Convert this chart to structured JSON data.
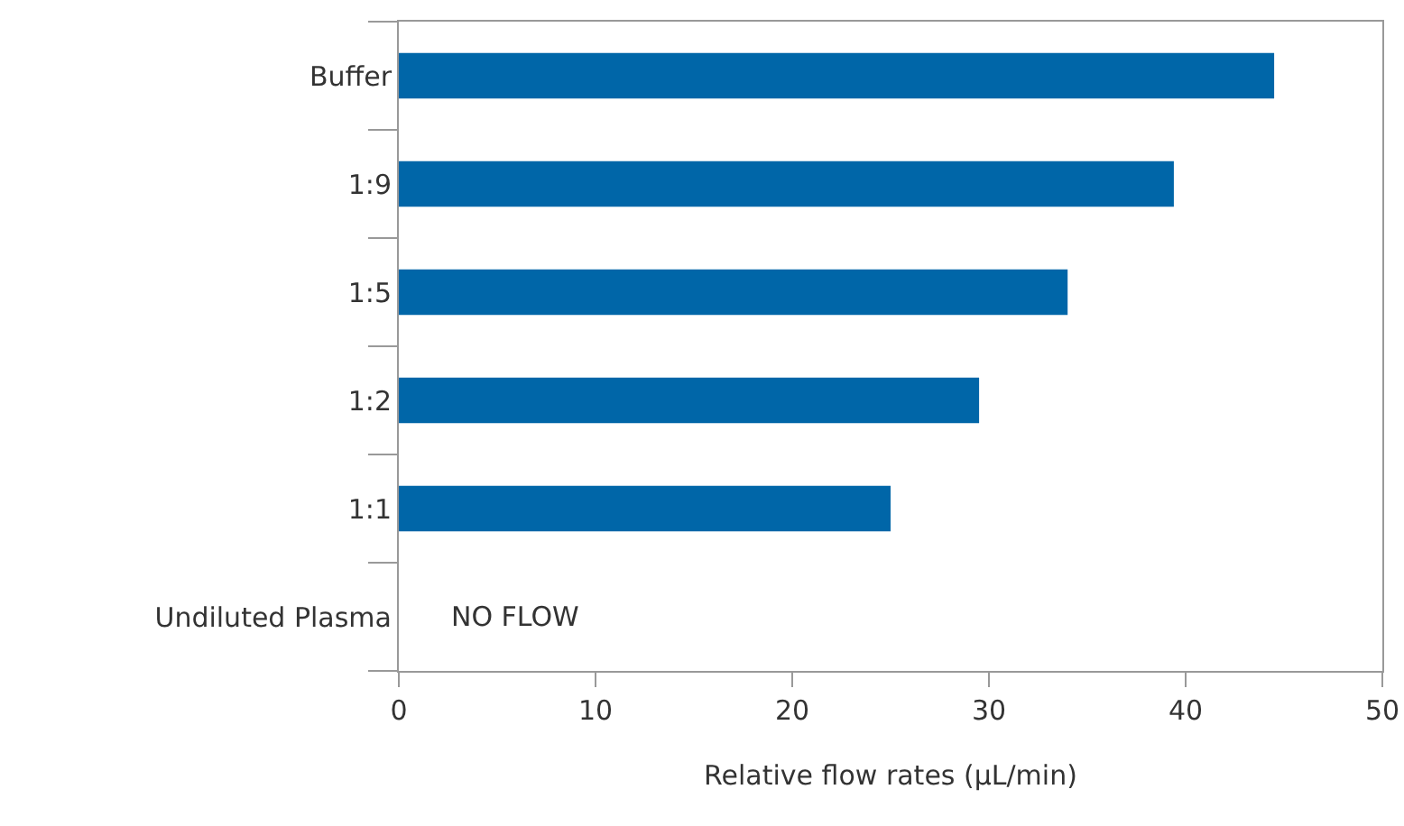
{
  "chart_data": {
    "type": "bar",
    "orientation": "horizontal",
    "categories": [
      "Buffer",
      "1:9",
      "1:5",
      "1:2",
      "1:1",
      "Undiluted Plasma"
    ],
    "values": [
      44.5,
      39.4,
      34.0,
      29.5,
      25.0,
      null
    ],
    "color": "#0066a8",
    "xlabel": "Relative flow rates (µL/min)",
    "xlim": [
      0,
      50
    ],
    "xticks": [
      0,
      10,
      20,
      30,
      40,
      50
    ],
    "grid": false,
    "annotations": [
      "NO FLOW"
    ]
  }
}
